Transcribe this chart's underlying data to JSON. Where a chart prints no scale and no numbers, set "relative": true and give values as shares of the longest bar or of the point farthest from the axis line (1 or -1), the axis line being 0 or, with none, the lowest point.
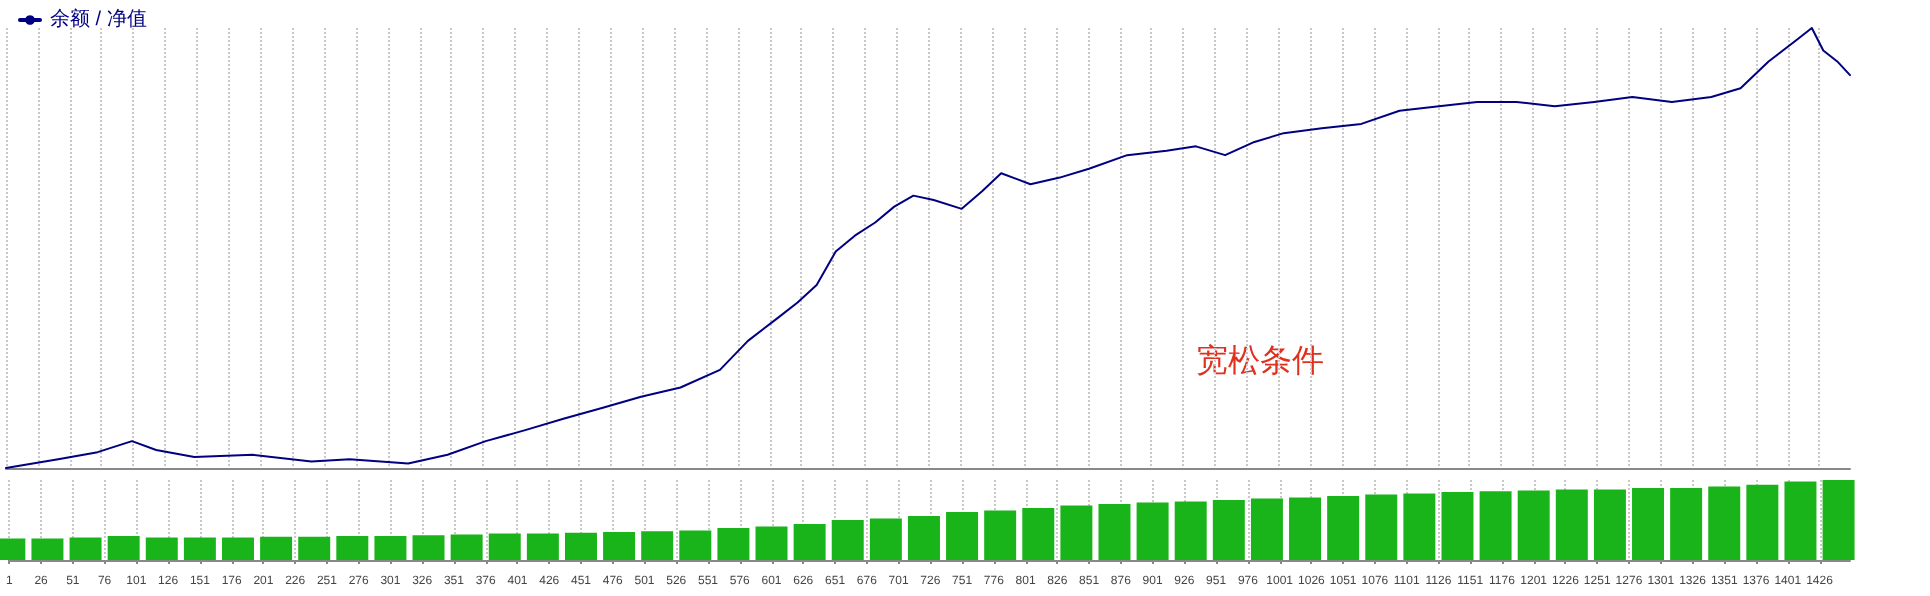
{
  "chart_data": [
    {
      "type": "line",
      "relative": true,
      "legend": "top left",
      "marker": "none",
      "line_style": "solid",
      "grid": "x",
      "tick_labels": false,
      "xlim": [
        1,
        1450
      ],
      "xticks": [
        1,
        26,
        51,
        76,
        101,
        126,
        151,
        176,
        201,
        226,
        251,
        276,
        301,
        326,
        351,
        376,
        401,
        426,
        451,
        476,
        501,
        526,
        551,
        576,
        601,
        626,
        651,
        676,
        701,
        726,
        751,
        776,
        801,
        826,
        851,
        876,
        901,
        926,
        951,
        976,
        1001,
        1026,
        1051,
        1076,
        1101,
        1126,
        1151,
        1176,
        1201,
        1226,
        1251,
        1276,
        1301,
        1326,
        1351,
        1376,
        1401,
        1426
      ],
      "annotations": [
        "宽松条件"
      ],
      "series": [
        {
          "name": "余额 / 净值",
          "color": "#000080",
          "x": [
            1,
            42,
            73,
            100,
            119,
            149,
            195,
            241,
            271,
            317,
            348,
            378,
            409,
            439,
            470,
            500,
            531,
            562,
            584,
            607,
            623,
            638,
            653,
            668,
            684,
            699,
            714,
            730,
            752,
            768,
            783,
            806,
            829,
            852,
            882,
            913,
            936,
            959,
            982,
            1005,
            1035,
            1066,
            1096,
            1127,
            1157,
            1188,
            1218,
            1249,
            1279,
            1310,
            1341,
            1364,
            1386,
            1409,
            1420,
            1429,
            1440,
            1450
          ],
          "values": [
            0,
            0.02,
            0.036,
            0.061,
            0.041,
            0.025,
            0.03,
            0.015,
            0.02,
            0.01,
            0.03,
            0.061,
            0.086,
            0.112,
            0.137,
            0.162,
            0.183,
            0.223,
            0.289,
            0.34,
            0.376,
            0.416,
            0.492,
            0.528,
            0.558,
            0.594,
            0.619,
            0.609,
            0.589,
            0.629,
            0.67,
            0.645,
            0.66,
            0.68,
            0.711,
            0.721,
            0.731,
            0.711,
            0.741,
            0.761,
            0.772,
            0.782,
            0.812,
            0.822,
            0.832,
            0.832,
            0.822,
            0.832,
            0.843,
            0.832,
            0.843,
            0.863,
            0.924,
            0.975,
            1,
            0.949,
            0.924,
            0.893
          ]
        }
      ]
    },
    {
      "type": "bar",
      "relative": true,
      "grid": "x",
      "tick_labels": "x",
      "xlim": [
        1,
        1450
      ],
      "xticks": [
        1,
        26,
        51,
        76,
        101,
        126,
        151,
        176,
        201,
        226,
        251,
        276,
        301,
        326,
        351,
        376,
        401,
        426,
        451,
        476,
        501,
        526,
        551,
        576,
        601,
        626,
        651,
        676,
        701,
        726,
        751,
        776,
        801,
        826,
        851,
        876,
        901,
        926,
        951,
        976,
        1001,
        1026,
        1051,
        1076,
        1101,
        1126,
        1151,
        1176,
        1201,
        1226,
        1251,
        1276,
        1301,
        1326,
        1351,
        1376,
        1401,
        1426
      ],
      "series": [
        {
          "color": "#19b419",
          "x": [
            1,
            31,
            61,
            91,
            121,
            151,
            181,
            211,
            241,
            271,
            301,
            331,
            361,
            391,
            421,
            451,
            481,
            511,
            541,
            571,
            601,
            631,
            661,
            691,
            721,
            751,
            781,
            811,
            841,
            871,
            901,
            931,
            961,
            991,
            1021,
            1051,
            1081,
            1111,
            1141,
            1171,
            1201,
            1231,
            1261,
            1291,
            1321,
            1351,
            1381,
            1411,
            1441
          ],
          "values": [
            0.27,
            0.27,
            0.28,
            0.3,
            0.28,
            0.28,
            0.28,
            0.29,
            0.29,
            0.3,
            0.3,
            0.31,
            0.32,
            0.33,
            0.33,
            0.34,
            0.35,
            0.36,
            0.37,
            0.4,
            0.42,
            0.45,
            0.5,
            0.52,
            0.55,
            0.6,
            0.62,
            0.65,
            0.68,
            0.7,
            0.72,
            0.73,
            0.75,
            0.77,
            0.78,
            0.8,
            0.82,
            0.83,
            0.85,
            0.86,
            0.87,
            0.88,
            0.88,
            0.9,
            0.9,
            0.92,
            0.94,
            0.98,
            1
          ]
        }
      ]
    }
  ]
}
